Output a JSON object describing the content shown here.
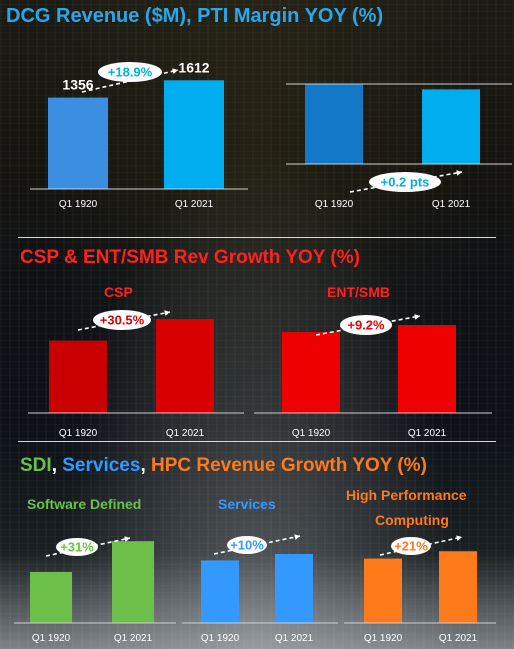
{
  "titles": {
    "dcg": "DCG Revenue ($M), PTI Margin YOY (%)",
    "csp": "CSP & ENT/SMB Rev Growth YOY (%)",
    "row3": [
      {
        "text": "SDI",
        "color": "#6cc04a"
      },
      {
        "text": ", ",
        "color": "#ffffff"
      },
      {
        "text": "Services",
        "color": "#3399ff"
      },
      {
        "text": ", ",
        "color": "#ffffff"
      },
      {
        "text": "HPC Revenue Growth YOY (%)",
        "color": "#ff7a1a"
      }
    ]
  },
  "subtitles": {
    "csp": "CSP",
    "ent": "ENT/SMB",
    "sdi": "Software Defined",
    "services": "Services",
    "hpc_line1": "High Performance",
    "hpc_line2": "Computing"
  },
  "chart_data": [
    {
      "id": "dcg_revenue",
      "type": "bar",
      "categories": [
        "Q1 1920",
        "Q1 2021"
      ],
      "values": [
        1356,
        1612
      ],
      "data_labels": [
        "1356",
        "1612"
      ],
      "colors": [
        "#3c8fe0",
        "#00aef0"
      ],
      "annotation": "+18.9%",
      "ylim": [
        0,
        1750
      ]
    },
    {
      "id": "pti_margin",
      "type": "bar",
      "categories": [
        "Q1 1920",
        "Q1 2021"
      ],
      "values": [
        0.97,
        0.91
      ],
      "colors": [
        "#1478c8",
        "#00aef0"
      ],
      "annotation": "+0.2 pts",
      "ylim": [
        0,
        1
      ]
    },
    {
      "id": "csp",
      "type": "bar",
      "categories": [
        "Q1 1920",
        "Q1 2021"
      ],
      "values": [
        0.77,
        1.0
      ],
      "colors": [
        "#c80000",
        "#d80000"
      ],
      "annotation": "+30.5%",
      "ylim": [
        0,
        1
      ]
    },
    {
      "id": "ent_smb",
      "type": "bar",
      "categories": [
        "Q1 1920",
        "Q1 2021"
      ],
      "values": [
        0.92,
        1.0
      ],
      "colors": [
        "#ee0000",
        "#ee0000"
      ],
      "annotation": "+9.2%",
      "ylim": [
        0,
        1
      ]
    },
    {
      "id": "sdi",
      "type": "bar",
      "categories": [
        "Q1 1920",
        "Q1 2021"
      ],
      "values": [
        0.58,
        0.93
      ],
      "colors": [
        "#6cc04a",
        "#6cc04a"
      ],
      "annotation": "+31%",
      "ylim": [
        0,
        1
      ]
    },
    {
      "id": "services",
      "type": "bar",
      "categories": [
        "Q1 1920",
        "Q1 2021"
      ],
      "values": [
        0.68,
        0.75
      ],
      "colors": [
        "#3399ff",
        "#3399ff"
      ],
      "annotation": "+10%",
      "ylim": [
        0,
        1
      ]
    },
    {
      "id": "hpc",
      "type": "bar",
      "categories": [
        "Q1 1920",
        "Q1 2021"
      ],
      "values": [
        0.7,
        0.78
      ],
      "colors": [
        "#ff7a1a",
        "#ff7a1a"
      ],
      "annotation": "+21%",
      "ylim": [
        0,
        1
      ]
    }
  ]
}
